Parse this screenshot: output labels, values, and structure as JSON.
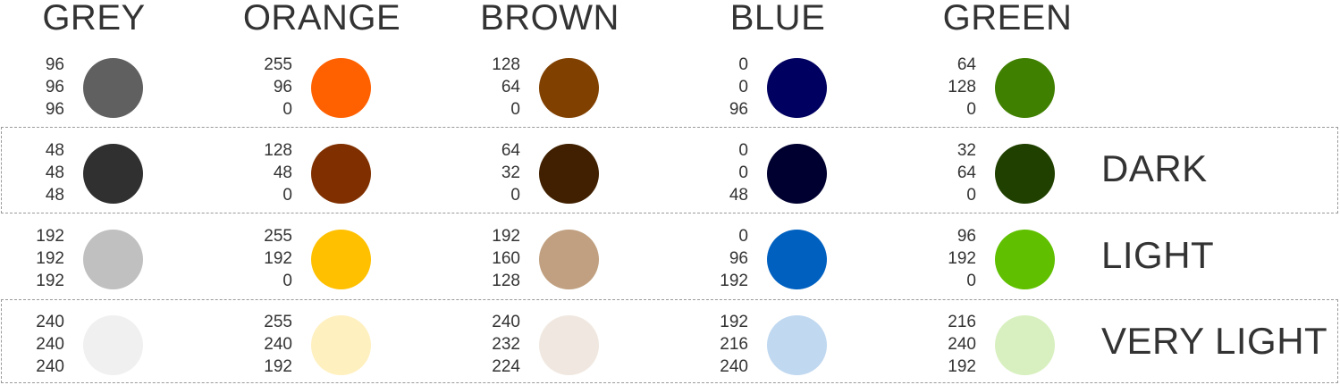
{
  "columns": [
    "GREY",
    "ORANGE",
    "BROWN",
    "BLUE",
    "GREEN"
  ],
  "rows": [
    {
      "label": "",
      "boxed": false,
      "cells": [
        {
          "rgb": [
            "96",
            "96",
            "96"
          ],
          "color": "#606060"
        },
        {
          "rgb": [
            "255",
            "96",
            "0"
          ],
          "color": "#ff6000"
        },
        {
          "rgb": [
            "128",
            "64",
            "0"
          ],
          "color": "#804000"
        },
        {
          "rgb": [
            "0",
            "0",
            "96"
          ],
          "color": "#000060"
        },
        {
          "rgb": [
            "64",
            "128",
            "0"
          ],
          "color": "#408000"
        }
      ]
    },
    {
      "label": "DARK",
      "boxed": true,
      "cells": [
        {
          "rgb": [
            "48",
            "48",
            "48"
          ],
          "color": "#303030"
        },
        {
          "rgb": [
            "128",
            "48",
            "0"
          ],
          "color": "#803000"
        },
        {
          "rgb": [
            "64",
            "32",
            "0"
          ],
          "color": "#402000"
        },
        {
          "rgb": [
            "0",
            "0",
            "48"
          ],
          "color": "#000030"
        },
        {
          "rgb": [
            "32",
            "64",
            "0"
          ],
          "color": "#204000"
        }
      ]
    },
    {
      "label": "LIGHT",
      "boxed": false,
      "cells": [
        {
          "rgb": [
            "192",
            "192",
            "192"
          ],
          "color": "#c0c0c0"
        },
        {
          "rgb": [
            "255",
            "192",
            "0"
          ],
          "color": "#ffc000"
        },
        {
          "rgb": [
            "192",
            "160",
            "128"
          ],
          "color": "#c0a080"
        },
        {
          "rgb": [
            "0",
            "96",
            "192"
          ],
          "color": "#0060c0"
        },
        {
          "rgb": [
            "96",
            "192",
            "0"
          ],
          "color": "#60c000"
        }
      ]
    },
    {
      "label": "VERY LIGHT",
      "boxed": true,
      "cells": [
        {
          "rgb": [
            "240",
            "240",
            "240"
          ],
          "color": "#f0f0f0"
        },
        {
          "rgb": [
            "255",
            "240",
            "192"
          ],
          "color": "#fff0c0"
        },
        {
          "rgb": [
            "240",
            "232",
            "224"
          ],
          "color": "#f0e8e0"
        },
        {
          "rgb": [
            "192",
            "216",
            "240"
          ],
          "color": "#c0d8f0"
        },
        {
          "rgb": [
            "216",
            "240",
            "192"
          ],
          "color": "#d8f0c0"
        }
      ]
    }
  ]
}
